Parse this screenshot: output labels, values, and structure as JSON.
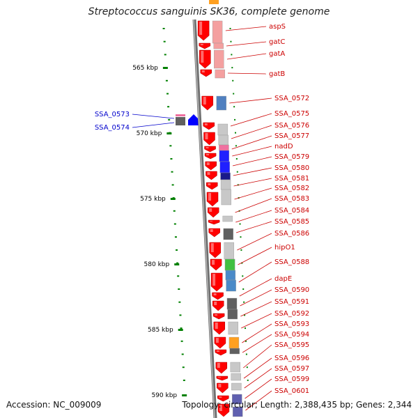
{
  "title": "Streptococcus sanguinis SK36, complete genome",
  "footer": {
    "accession": "Accession: NC_009009",
    "summary": "Topology: circular; Length: 2,388,435 bp; Genes: 2,344"
  },
  "colors": {
    "forward_gene": "#ff0000",
    "reverse_gene": "#0000ff",
    "forward_label": "#cc0000",
    "reverse_label": "#0000cc",
    "backbone": "#808080",
    "tick": "#008000"
  },
  "position_ticks": [
    {
      "label": "565 kbp",
      "kbp": 565
    },
    {
      "label": "570 kbp",
      "kbp": 570
    },
    {
      "label": "575 kbp",
      "kbp": 575
    },
    {
      "label": "580 kbp",
      "kbp": 580
    },
    {
      "label": "585 kbp",
      "kbp": 585
    },
    {
      "label": "590 kbp",
      "kbp": 590
    }
  ],
  "genes_forward": [
    {
      "name": "aspS"
    },
    {
      "name": "gatC"
    },
    {
      "name": "gatA"
    },
    {
      "name": "gatB"
    },
    {
      "name": "SSA_0572"
    },
    {
      "name": "SSA_0575"
    },
    {
      "name": "SSA_0576"
    },
    {
      "name": "SSA_0577"
    },
    {
      "name": "nadD"
    },
    {
      "name": "SSA_0579"
    },
    {
      "name": "SSA_0580"
    },
    {
      "name": "SSA_0581"
    },
    {
      "name": "SSA_0582"
    },
    {
      "name": "SSA_0583"
    },
    {
      "name": "SSA_0584"
    },
    {
      "name": "SSA_0585"
    },
    {
      "name": "SSA_0586"
    },
    {
      "name": "hipO1"
    },
    {
      "name": "SSA_0588"
    },
    {
      "name": "dapE"
    },
    {
      "name": "SSA_0590"
    },
    {
      "name": "SSA_0591"
    },
    {
      "name": "SSA_0592"
    },
    {
      "name": "SSA_0593"
    },
    {
      "name": "SSA_0594"
    },
    {
      "name": "SSA_0595"
    },
    {
      "name": "SSA_0596"
    },
    {
      "name": "SSA_0597"
    },
    {
      "name": "SSA_0599"
    },
    {
      "name": "SSA_0601"
    }
  ],
  "genes_reverse": [
    {
      "name": "SSA_0573"
    },
    {
      "name": "SSA_0574"
    }
  ]
}
